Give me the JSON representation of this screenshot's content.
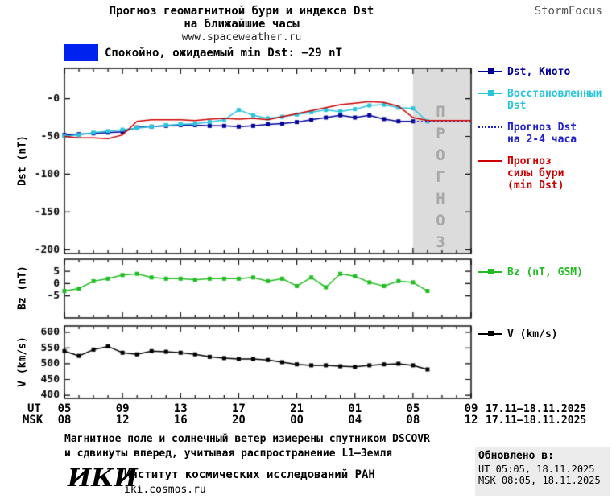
{
  "header": {
    "title_line1": "Прогноз геомагнитной бури и индекса Dst",
    "title_line2": "на ближайшие часы",
    "site": "www.spaceweather.ru",
    "brand": "StormFocus"
  },
  "status": {
    "label": "Спокойно, ожидаемый min Dst: −29 nT",
    "swatch_color": "#0022EE"
  },
  "forecast_band_label": "ПРОГНОЗ",
  "axis": {
    "xticks_hours": [
      5,
      9,
      13,
      17,
      21,
      25,
      29,
      33
    ],
    "ut_labels": [
      "05",
      "09",
      "13",
      "17",
      "21",
      "01",
      "05",
      "09"
    ],
    "msk_labels": [
      "08",
      "12",
      "16",
      "20",
      "00",
      "04",
      "08",
      "12"
    ],
    "ut_row_label": "UT",
    "msk_row_label": "MSK",
    "ut_dates": "17.11–18.11.2025",
    "msk_dates": "17.11–18.11.2025"
  },
  "legend": {
    "dst": [
      {
        "lines": [
          "Dst, Киото"
        ],
        "color": "#000099",
        "marker": "square"
      },
      {
        "lines": [
          "Восстановленный",
          "Dst"
        ],
        "color": "#29C5DD",
        "marker": "square"
      },
      {
        "lines": [
          "Прогноз Dst",
          "на 2-4 часа"
        ],
        "color": "#2222CC",
        "dash": true
      },
      {
        "lines": [
          "Прогноз",
          "силы бури",
          "(min Dst)"
        ],
        "color": "#CC0000"
      }
    ],
    "bz": [
      {
        "lines": [
          "Bz (nT, GSM)"
        ],
        "color": "#22BB22",
        "marker": "square"
      }
    ],
    "v": [
      {
        "lines": [
          "V (km/s)"
        ],
        "color": "#000000",
        "marker": "square"
      }
    ]
  },
  "footer": {
    "note_line1": "Магнитное поле и солнечный ветер измерены спутником DSCOVR",
    "note_line2": "и сдвинуты вперед, учитывая распространение L1–Земля",
    "logo": "ИКИ",
    "institute": "Институт космических исследований РАН",
    "site": "iki.cosmos.ru",
    "updated_label": "Обновлено в:",
    "updated_ut": "UT  05:05, 18.11.2025",
    "updated_msk": "MSK 08:05, 18.11.2025"
  },
  "chart_data": [
    {
      "type": "line",
      "title": "Прогноз геомагнитной бури и индекса Dst на ближайшие часы",
      "ylabel": "Dst (nT)",
      "xlabel": "UT/MSK hours, 17.11–18.11.2025",
      "xlim": [
        5,
        33
      ],
      "ylim": [
        -205,
        40
      ],
      "yticks": [
        {
          "v": 0,
          "label": "-0"
        },
        {
          "v": -50,
          "label": "-50"
        },
        {
          "v": -100,
          "label": "-100"
        },
        {
          "v": -150,
          "label": "-150"
        },
        {
          "v": -200,
          "label": "-200"
        }
      ],
      "forecast_band": [
        29,
        33
      ],
      "series": [
        {
          "name": "Dst, Киото",
          "color": "#000099",
          "marker": "square",
          "x_start": 5,
          "values": [
            -48,
            -47,
            -46,
            -45,
            -44,
            -38,
            -37,
            -36,
            -35,
            -35,
            -36,
            -36,
            -37,
            -36,
            -34,
            -33,
            -31,
            -28,
            -25,
            -22,
            -25,
            -22,
            -27,
            -30,
            -30
          ]
        },
        {
          "name": "Восстановленный Dst",
          "color": "#29C5DD",
          "marker": "square",
          "x_start": 5,
          "values": [
            -50,
            -48,
            -45,
            -43,
            -41,
            -39,
            -37,
            -35,
            -34,
            -33,
            -31,
            -28,
            -15,
            -22,
            -26,
            -24,
            -21,
            -18,
            -15,
            -17,
            -14,
            -9,
            -8,
            -12,
            -13,
            -30
          ]
        },
        {
          "name": "Прогноз Dst на 2-4 часа",
          "color": "#2222CC",
          "dash": true,
          "x_start": 29,
          "values": [
            -30,
            -30,
            -30,
            -30,
            -30
          ]
        },
        {
          "name": "Прогноз силы бури (min Dst)",
          "color": "#CC0000",
          "x_start": 5,
          "values": [
            -50,
            -52,
            -52,
            -53,
            -48,
            -30,
            -28,
            -28,
            -28,
            -29,
            -27,
            -26,
            -27,
            -26,
            -28,
            -24,
            -20,
            -16,
            -12,
            -8,
            -6,
            -4,
            -5,
            -10,
            -25,
            -29,
            -29,
            -29,
            -29
          ]
        }
      ]
    },
    {
      "type": "line",
      "title": "Bz (nT, GSM)",
      "ylabel": "Bz (nT)",
      "xlim": [
        5,
        33
      ],
      "ylim": [
        -14,
        10
      ],
      "yticks": [
        {
          "v": 5,
          "label": "5"
        },
        {
          "v": 0,
          "label": "0"
        },
        {
          "v": -5,
          "label": "-5"
        }
      ],
      "series": [
        {
          "name": "Bz (nT, GSM)",
          "color": "#22BB22",
          "marker": "square",
          "x_start": 5,
          "values": [
            -3,
            -2,
            1,
            2,
            3.5,
            4,
            2.5,
            2,
            2,
            1.5,
            2,
            2,
            2,
            2.5,
            1,
            2,
            -1,
            2.5,
            -1.5,
            4,
            3,
            0.5,
            -1,
            1,
            0.5,
            -3
          ]
        }
      ]
    },
    {
      "type": "line",
      "title": "V (km/s)",
      "ylabel": "V (km/s)",
      "xlim": [
        5,
        33
      ],
      "ylim": [
        390,
        620
      ],
      "yticks": [
        {
          "v": 600,
          "label": "600"
        },
        {
          "v": 550,
          "label": "550"
        },
        {
          "v": 500,
          "label": "500"
        },
        {
          "v": 450,
          "label": "450"
        },
        {
          "v": 400,
          "label": "400"
        }
      ],
      "series": [
        {
          "name": "V (km/s)",
          "color": "#000000",
          "marker": "square",
          "x_start": 5,
          "values": [
            540,
            525,
            545,
            555,
            535,
            530,
            540,
            538,
            535,
            530,
            522,
            518,
            515,
            515,
            512,
            505,
            498,
            495,
            495,
            492,
            490,
            495,
            498,
            500,
            495,
            482
          ]
        }
      ]
    }
  ]
}
